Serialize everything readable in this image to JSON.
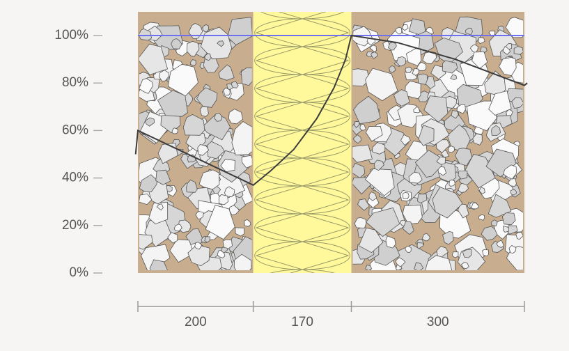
{
  "chart_data": {
    "type": "line",
    "layers": [
      {
        "thickness": 200,
        "color": "#c8ae8e",
        "pattern": "stones"
      },
      {
        "thickness": 170,
        "color": "#fff99b",
        "pattern": "insulation"
      },
      {
        "thickness": 300,
        "color": "#c8ae8e",
        "pattern": "stones"
      }
    ],
    "series": [
      {
        "color": "#6f6ff0",
        "x": [
          0,
          670
        ],
        "values": [
          100,
          100
        ]
      },
      {
        "color": "#3c3c3c",
        "x": [
          -4,
          0,
          200,
          230,
          270,
          310,
          340,
          360,
          370,
          450,
          550,
          670,
          675
        ],
        "values": [
          50,
          60,
          37,
          43,
          52,
          65,
          78,
          90,
          100,
          97,
          90,
          79,
          80
        ]
      }
    ],
    "xlim": [
      0,
      670
    ],
    "ylim": [
      0,
      100
    ],
    "yticks": [
      {
        "value": 0,
        "label": "0%"
      },
      {
        "value": 20,
        "label": "20%"
      },
      {
        "value": 40,
        "label": "40%"
      },
      {
        "value": 60,
        "label": "60%"
      },
      {
        "value": 80,
        "label": "80%"
      },
      {
        "value": 100,
        "label": "100%"
      }
    ]
  }
}
